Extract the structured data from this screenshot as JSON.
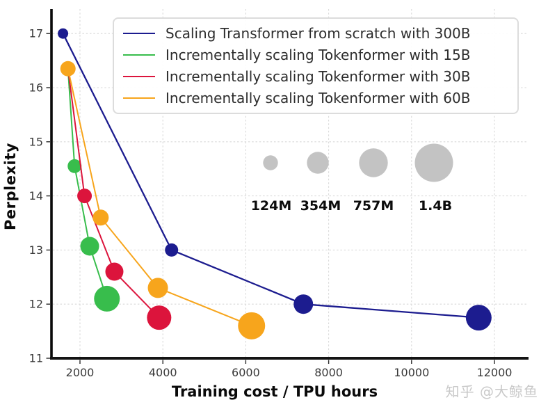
{
  "watermark": "知乎 @大鲸鱼",
  "chart_data": {
    "type": "scatter",
    "subtype": "bubble-line",
    "title": "",
    "xlabel": "Training cost / TPU hours",
    "ylabel": "Perplexity",
    "xlim": [
      1280,
      12820
    ],
    "ylim": [
      11,
      17.45
    ],
    "x_ticks": [
      2000,
      4000,
      6000,
      8000,
      10000,
      12000
    ],
    "y_ticks": [
      11,
      12,
      13,
      14,
      15,
      16,
      17
    ],
    "grid": true,
    "legend_position": "upper-right-inside",
    "series": [
      {
        "name": "Scaling Transformer from scratch with 300B",
        "color": "#1c1c8f",
        "points": [
          {
            "x": 1590,
            "y": 17.0,
            "model_size": "124M",
            "r": 7.5
          },
          {
            "x": 4210,
            "y": 13.0,
            "model_size": "354M",
            "r": 9.5
          },
          {
            "x": 7390,
            "y": 12.0,
            "model_size": "757M",
            "r": 14
          },
          {
            "x": 11620,
            "y": 11.75,
            "model_size": "1.4B",
            "r": 18.5
          }
        ]
      },
      {
        "name": "Incrementally scaling Tokenformer with 15B",
        "color": "#38bd4c",
        "points": [
          {
            "x": 1710,
            "y": 16.35,
            "model_size": "124M",
            "r": 10.5
          },
          {
            "x": 1870,
            "y": 14.55,
            "model_size": "354M",
            "r": 10
          },
          {
            "x": 2235,
            "y": 13.07,
            "model_size": "757M",
            "r": 13.5
          },
          {
            "x": 2650,
            "y": 12.1,
            "model_size": "1.4B",
            "r": 18.5
          }
        ]
      },
      {
        "name": "Incrementally scaling Tokenformer with 30B",
        "color": "#dc143c",
        "points": [
          {
            "x": 1710,
            "y": 16.35,
            "model_size": "124M",
            "r": 10.5
          },
          {
            "x": 2110,
            "y": 14.0,
            "model_size": "354M",
            "r": 10.5
          },
          {
            "x": 2830,
            "y": 12.6,
            "model_size": "757M",
            "r": 13
          },
          {
            "x": 3910,
            "y": 11.75,
            "model_size": "1.4B",
            "r": 17.5
          }
        ]
      },
      {
        "name": "Incrementally scaling Tokenformer with 60B",
        "color": "#f7a51c",
        "points": [
          {
            "x": 1710,
            "y": 16.35,
            "model_size": "124M",
            "r": 11
          },
          {
            "x": 2500,
            "y": 13.6,
            "model_size": "354M",
            "r": 11.5
          },
          {
            "x": 3880,
            "y": 12.3,
            "model_size": "757M",
            "r": 14.5
          },
          {
            "x": 6140,
            "y": 11.6,
            "model_size": "1.4B",
            "r": 19.5
          }
        ]
      }
    ],
    "size_legend": {
      "color": "#c3c3c3",
      "items": [
        {
          "label": "124M",
          "r": 10.7
        },
        {
          "label": "354M",
          "r": 15.7
        },
        {
          "label": "757M",
          "r": 20.7
        },
        {
          "label": "1.4B",
          "r": 27.5
        }
      ]
    }
  }
}
